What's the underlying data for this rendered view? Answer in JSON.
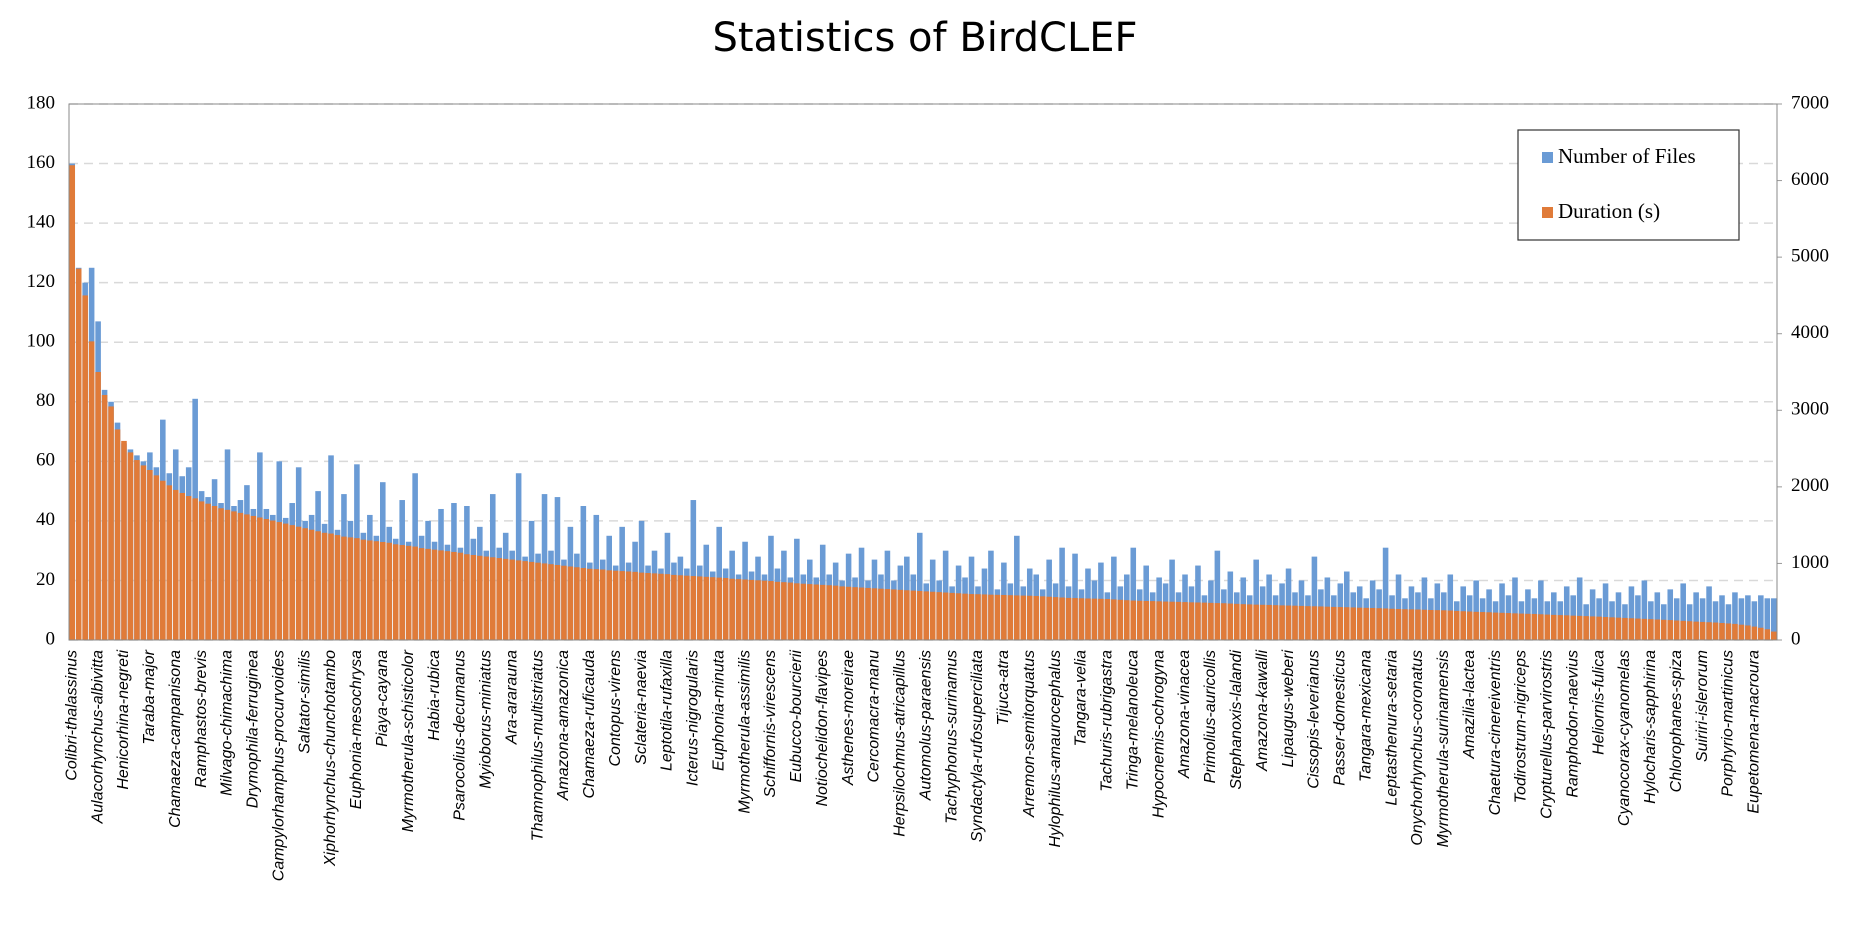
{
  "chart_data": {
    "type": "bar",
    "title": "Statistics of BirdCLEF",
    "categories": [
      "Colibri-thalassinus",
      null,
      null,
      null,
      "Aulacorhynchus-albivitta",
      null,
      null,
      null,
      "Henicorhina-negreti",
      null,
      null,
      null,
      "Taraba-major",
      null,
      null,
      null,
      "Chamaeza-campanisona",
      null,
      null,
      null,
      "Ramphastos-brevis",
      null,
      null,
      null,
      "Milvago-chimachima",
      null,
      null,
      null,
      "Drymophila-ferruginea",
      null,
      null,
      null,
      "Campylorhamphus-procurvoides",
      null,
      null,
      null,
      "Saltator-similis",
      null,
      null,
      null,
      "Xiphorhynchus-chunchotambo",
      null,
      null,
      null,
      "Euphonia-mesochrysa",
      null,
      null,
      null,
      "Piaya-cayana",
      null,
      null,
      null,
      "Myrmotherula-schisticolor",
      null,
      null,
      null,
      "Habia-rubica",
      null,
      null,
      null,
      "Psarocolius-decumanus",
      null,
      null,
      null,
      "Myioborus-miniatus",
      null,
      null,
      null,
      "Ara-ararauna",
      null,
      null,
      null,
      "Thamnophilus-multistriatus",
      null,
      null,
      null,
      "Amazona-amazonica",
      null,
      null,
      null,
      "Chamaeza-ruficauda",
      null,
      null,
      null,
      "Contopus-virens",
      null,
      null,
      null,
      "Sclateria-naevia",
      null,
      null,
      null,
      "Leptotila-rufaxilla",
      null,
      null,
      null,
      "Icterus-nigrogularis",
      null,
      null,
      null,
      "Euphonia-minuta",
      null,
      null,
      null,
      "Myrmotherula-assimilis",
      null,
      null,
      null,
      "Schiffornis-virescens",
      null,
      null,
      null,
      "Eubucco-bourcierii",
      null,
      null,
      null,
      "Notiochelidon-flavipes",
      null,
      null,
      null,
      "Asthenes-moreirae",
      null,
      null,
      null,
      "Cercomacra-manu",
      null,
      null,
      null,
      "Herpsilochmus-atricapillus",
      null,
      null,
      null,
      "Automolus-paraensis",
      null,
      null,
      null,
      "Tachyphonus-surinamus",
      null,
      null,
      null,
      "Syndactyla-rufosuperciliata",
      null,
      null,
      null,
      "Tijuca-atra",
      null,
      null,
      null,
      "Arremon-semitorquatus",
      null,
      null,
      null,
      "Hylophilus-amaurocephalus",
      null,
      null,
      null,
      "Tangara-velia",
      null,
      null,
      null,
      "Tachuris-rubrigastra",
      null,
      null,
      null,
      "Tringa-melanoleuca",
      null,
      null,
      null,
      "Hypocnemis-ochrogyna",
      null,
      null,
      null,
      "Amazona-vinacea",
      null,
      null,
      null,
      "Primolius-auricollis",
      null,
      null,
      null,
      "Stephanoxis-lalandi",
      null,
      null,
      null,
      "Amazona-kawalli",
      null,
      null,
      null,
      "Lipaugus-weberi",
      null,
      null,
      null,
      "Cissopis-leverianus",
      null,
      null,
      null,
      "Passer-domesticus",
      null,
      null,
      null,
      "Tangara-mexicana",
      null,
      null,
      null,
      "Leptasthenura-setaria",
      null,
      null,
      null,
      "Onychorhynchus-coronatus",
      null,
      null,
      null,
      "Myrmotherula-surinamensis",
      null,
      null,
      null,
      "Amazilia-lactea",
      null,
      null,
      null,
      "Chaetura-cinereiventris",
      null,
      null,
      null,
      "Todirostrum-nigriceps",
      null,
      null,
      null,
      "Crypturellus-parvirostris",
      null,
      null,
      null,
      "Ramphodon-naevius",
      null,
      null,
      null,
      "Heliornis-fulica",
      null,
      null,
      null,
      "Cyanocorax-cyanomelas",
      null,
      null,
      null,
      "Hylocharis-sapphirina",
      null,
      null,
      null,
      "Chlorophanes-spiza",
      null,
      null,
      null,
      "Suiriri-islerorum",
      null,
      null,
      null,
      "Porphyrio-martinicus",
      null,
      null,
      null,
      "Eupetomena-macroura",
      null,
      null,
      null
    ],
    "series": [
      {
        "name": "Number of Files",
        "color": "#6a9bd5",
        "values": [
          160,
          125,
          120,
          125,
          107,
          84,
          80,
          73,
          66,
          64,
          62,
          60,
          63,
          58,
          74,
          56,
          64,
          55,
          58,
          81,
          50,
          48,
          54,
          46,
          64,
          45,
          47,
          52,
          44,
          63,
          44,
          42,
          60,
          41,
          46,
          58,
          40,
          42,
          50,
          39,
          62,
          37,
          49,
          40,
          59,
          36,
          42,
          35,
          53,
          38,
          34,
          47,
          33,
          56,
          35,
          40,
          33,
          44,
          32,
          46,
          31,
          45,
          34,
          38,
          30,
          49,
          31,
          36,
          30,
          56,
          28,
          40,
          29,
          49,
          30,
          48,
          27,
          38,
          29,
          45,
          26,
          42,
          27,
          35,
          25,
          38,
          26,
          33,
          40,
          25,
          30,
          24,
          36,
          26,
          28,
          24,
          47,
          25,
          32,
          23,
          38,
          24,
          30,
          22,
          33,
          23,
          28,
          22,
          35,
          24,
          30,
          21,
          34,
          22,
          27,
          21,
          32,
          22,
          26,
          20,
          29,
          21,
          31,
          20,
          27,
          22,
          30,
          20,
          25,
          28,
          22,
          36,
          19,
          27,
          20,
          30,
          18,
          25,
          21,
          28,
          18,
          24,
          30,
          17,
          26,
          19,
          35,
          18,
          24,
          22,
          17,
          27,
          19,
          31,
          18,
          29,
          17,
          24,
          20,
          26,
          16,
          28,
          18,
          22,
          31,
          17,
          25,
          16,
          21,
          19,
          27,
          16,
          22,
          18,
          25,
          15,
          20,
          30,
          17,
          23,
          16,
          21,
          15,
          27,
          18,
          22,
          15,
          19,
          24,
          16,
          20,
          15,
          28,
          17,
          21,
          15,
          19,
          23,
          16,
          18,
          14,
          20,
          17,
          31,
          15,
          22,
          14,
          18,
          16,
          21,
          14,
          19,
          16,
          22,
          13,
          18,
          15,
          20,
          14,
          17,
          13,
          19,
          15,
          21,
          13,
          17,
          14,
          20,
          13,
          16,
          13,
          18,
          15,
          21,
          12,
          17,
          14,
          19,
          13,
          16,
          12,
          18,
          15,
          20,
          13,
          16,
          12,
          17,
          14,
          19,
          12,
          16,
          14,
          18,
          13,
          15,
          12,
          16,
          14,
          15,
          13,
          15,
          14,
          14
        ]
      },
      {
        "name": "Duration (s)",
        "color": "#e07b39",
        "axis": "y2",
        "values": [
          6200,
          4850,
          4500,
          3900,
          3500,
          3200,
          3050,
          2750,
          2600,
          2450,
          2350,
          2280,
          2220,
          2150,
          2080,
          2020,
          1960,
          1920,
          1880,
          1850,
          1810,
          1780,
          1750,
          1720,
          1700,
          1680,
          1660,
          1640,
          1620,
          1600,
          1580,
          1560,
          1540,
          1520,
          1500,
          1480,
          1460,
          1440,
          1420,
          1400,
          1390,
          1370,
          1350,
          1340,
          1330,
          1310,
          1300,
          1290,
          1280,
          1270,
          1250,
          1240,
          1230,
          1220,
          1200,
          1190,
          1180,
          1170,
          1160,
          1150,
          1140,
          1120,
          1110,
          1100,
          1090,
          1080,
          1070,
          1060,
          1050,
          1040,
          1030,
          1020,
          1010,
          1000,
          990,
          980,
          970,
          960,
          950,
          940,
          930,
          925,
          920,
          910,
          905,
          900,
          895,
          890,
          880,
          875,
          870,
          865,
          860,
          850,
          845,
          840,
          835,
          830,
          825,
          820,
          815,
          810,
          800,
          795,
          790,
          785,
          780,
          775,
          770,
          760,
          755,
          750,
          740,
          735,
          730,
          725,
          720,
          715,
          710,
          700,
          695,
          690,
          685,
          680,
          675,
          670,
          665,
          660,
          655,
          650,
          645,
          640,
          635,
          630,
          625,
          620,
          615,
          610,
          605,
          600,
          598,
          595,
          592,
          590,
          588,
          585,
          582,
          580,
          578,
          575,
          570,
          565,
          560,
          555,
          550,
          548,
          545,
          542,
          540,
          538,
          535,
          530,
          525,
          520,
          515,
          512,
          510,
          508,
          505,
          502,
          500,
          498,
          495,
          492,
          490,
          488,
          485,
          482,
          480,
          476,
          472,
          468,
          465,
          462,
          460,
          458,
          455,
          452,
          450,
          448,
          445,
          442,
          440,
          438,
          435,
          432,
          430,
          428,
          425,
          422,
          420,
          418,
          415,
          412,
          408,
          405,
          402,
          400,
          398,
          395,
          392,
          390,
          388,
          385,
          380,
          376,
          372,
          368,
          365,
          362,
          358,
          355,
          352,
          348,
          345,
          342,
          340,
          336,
          332,
          328,
          325,
          322,
          318,
          315,
          312,
          308,
          305,
          300,
          296,
          292,
          288,
          284,
          280,
          276,
          272,
          268,
          264,
          260,
          255,
          250,
          245,
          240,
          236,
          232,
          228,
          222,
          216,
          210,
          200,
          190,
          175,
          160,
          140,
          110
        ]
      }
    ],
    "ylim": [
      0,
      180
    ],
    "yticks": [
      0,
      20,
      40,
      60,
      80,
      100,
      120,
      140,
      160,
      180
    ],
    "y2lim": [
      0,
      7000
    ],
    "y2ticks": [
      0,
      1000,
      2000,
      3000,
      4000,
      5000,
      6000,
      7000
    ],
    "grid": true,
    "legend": "top-right"
  }
}
